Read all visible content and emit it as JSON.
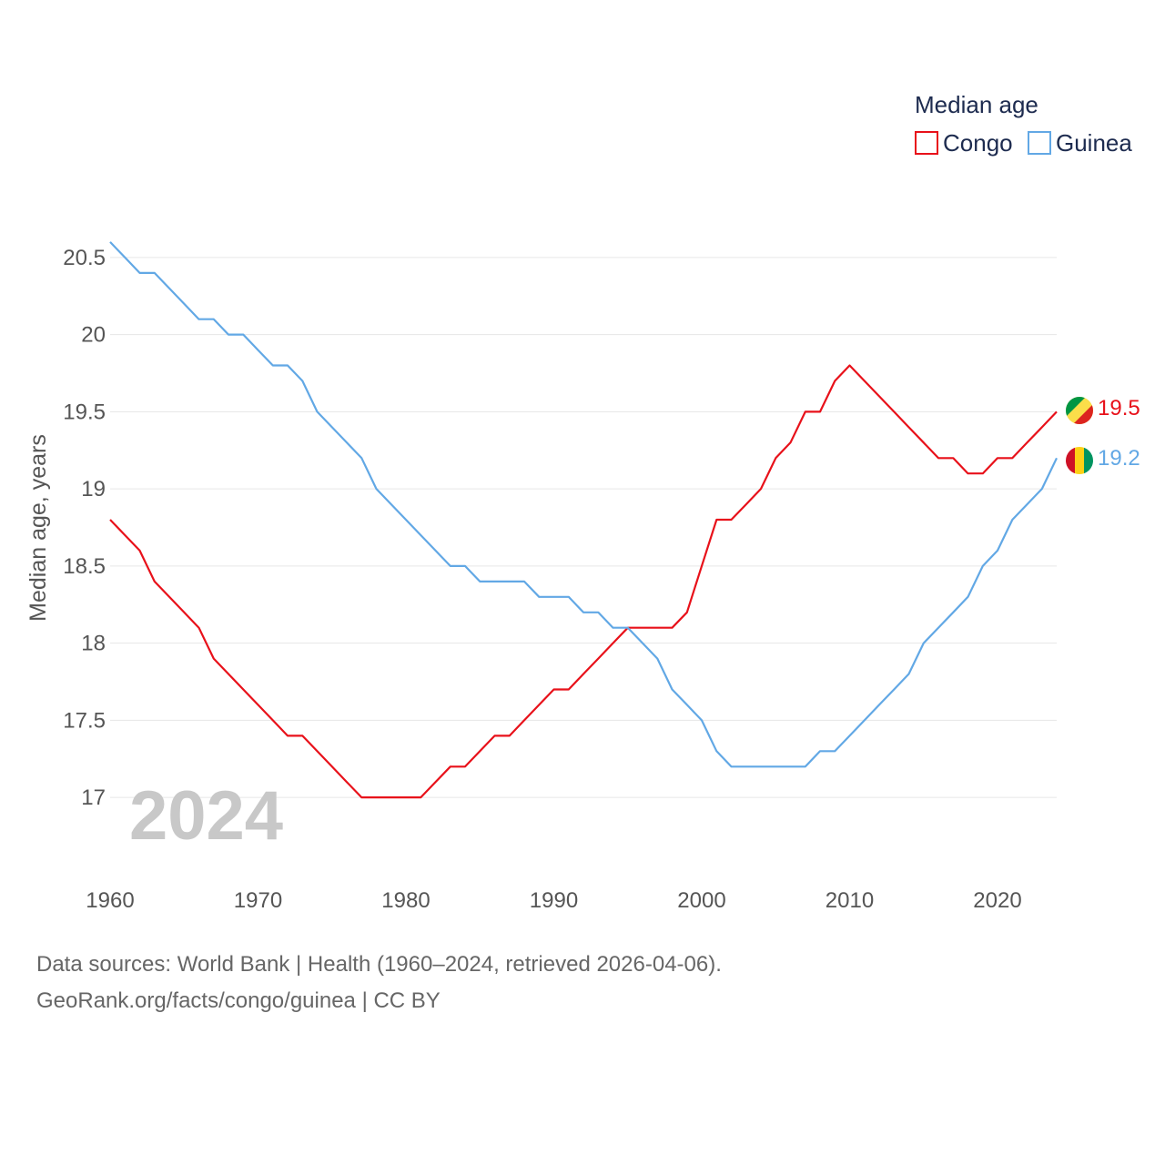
{
  "chart_data": {
    "type": "line",
    "title": "Median age",
    "ylabel": "Median age, years",
    "xlabel": "",
    "xlim": [
      1960,
      2024
    ],
    "ylim": [
      16.7,
      20.7
    ],
    "x_ticks": [
      "1960",
      "1970",
      "1980",
      "1990",
      "2000",
      "2010",
      "2020"
    ],
    "y_ticks": [
      "17",
      "17.5",
      "18",
      "18.5",
      "19",
      "19.5",
      "20",
      "20.5"
    ],
    "grid": true,
    "legend_position": "top-right",
    "year_label": "2024",
    "x": [
      1960,
      1961,
      1962,
      1963,
      1964,
      1965,
      1966,
      1967,
      1968,
      1969,
      1970,
      1971,
      1972,
      1973,
      1974,
      1975,
      1976,
      1977,
      1978,
      1979,
      1980,
      1981,
      1982,
      1983,
      1984,
      1985,
      1986,
      1987,
      1988,
      1989,
      1990,
      1991,
      1992,
      1993,
      1994,
      1995,
      1996,
      1997,
      1998,
      1999,
      2000,
      2001,
      2002,
      2003,
      2004,
      2005,
      2006,
      2007,
      2008,
      2009,
      2010,
      2011,
      2012,
      2013,
      2014,
      2015,
      2016,
      2017,
      2018,
      2019,
      2020,
      2021,
      2022,
      2023,
      2024
    ],
    "series": [
      {
        "name": "Congo",
        "color": "#e8111a",
        "end_label": "19.5",
        "values": [
          18.8,
          18.7,
          18.6,
          18.4,
          18.3,
          18.2,
          18.1,
          17.9,
          17.8,
          17.7,
          17.6,
          17.5,
          17.4,
          17.4,
          17.3,
          17.2,
          17.1,
          17.0,
          17.0,
          17.0,
          17.0,
          17.0,
          17.1,
          17.2,
          17.2,
          17.3,
          17.4,
          17.4,
          17.5,
          17.6,
          17.7,
          17.7,
          17.8,
          17.9,
          18.0,
          18.1,
          18.1,
          18.1,
          18.1,
          18.2,
          18.5,
          18.8,
          18.8,
          18.9,
          19.0,
          19.2,
          19.3,
          19.5,
          19.5,
          19.7,
          19.8,
          19.7,
          19.6,
          19.5,
          19.4,
          19.3,
          19.2,
          19.2,
          19.1,
          19.1,
          19.2,
          19.2,
          19.3,
          19.4,
          19.5
        ]
      },
      {
        "name": "Guinea",
        "color": "#62a8e5",
        "end_label": "19.2",
        "values": [
          20.6,
          20.5,
          20.4,
          20.4,
          20.3,
          20.2,
          20.1,
          20.1,
          20.0,
          20.0,
          19.9,
          19.8,
          19.8,
          19.7,
          19.5,
          19.4,
          19.3,
          19.2,
          19.0,
          18.9,
          18.8,
          18.7,
          18.6,
          18.5,
          18.5,
          18.4,
          18.4,
          18.4,
          18.4,
          18.3,
          18.3,
          18.3,
          18.2,
          18.2,
          18.1,
          18.1,
          18.0,
          17.9,
          17.7,
          17.6,
          17.5,
          17.3,
          17.2,
          17.2,
          17.2,
          17.2,
          17.2,
          17.2,
          17.3,
          17.3,
          17.4,
          17.5,
          17.6,
          17.7,
          17.8,
          18.0,
          18.1,
          18.2,
          18.3,
          18.5,
          18.6,
          18.8,
          18.9,
          19.0,
          19.2
        ]
      }
    ]
  },
  "legend": {
    "title": "Median age",
    "items": [
      "Congo",
      "Guinea"
    ]
  },
  "footer": {
    "line1": "Data sources: World Bank | Health (1960–2024, retrieved 2026-04-06).",
    "line2": "GeoRank.org/facts/congo/guinea | CC BY"
  }
}
